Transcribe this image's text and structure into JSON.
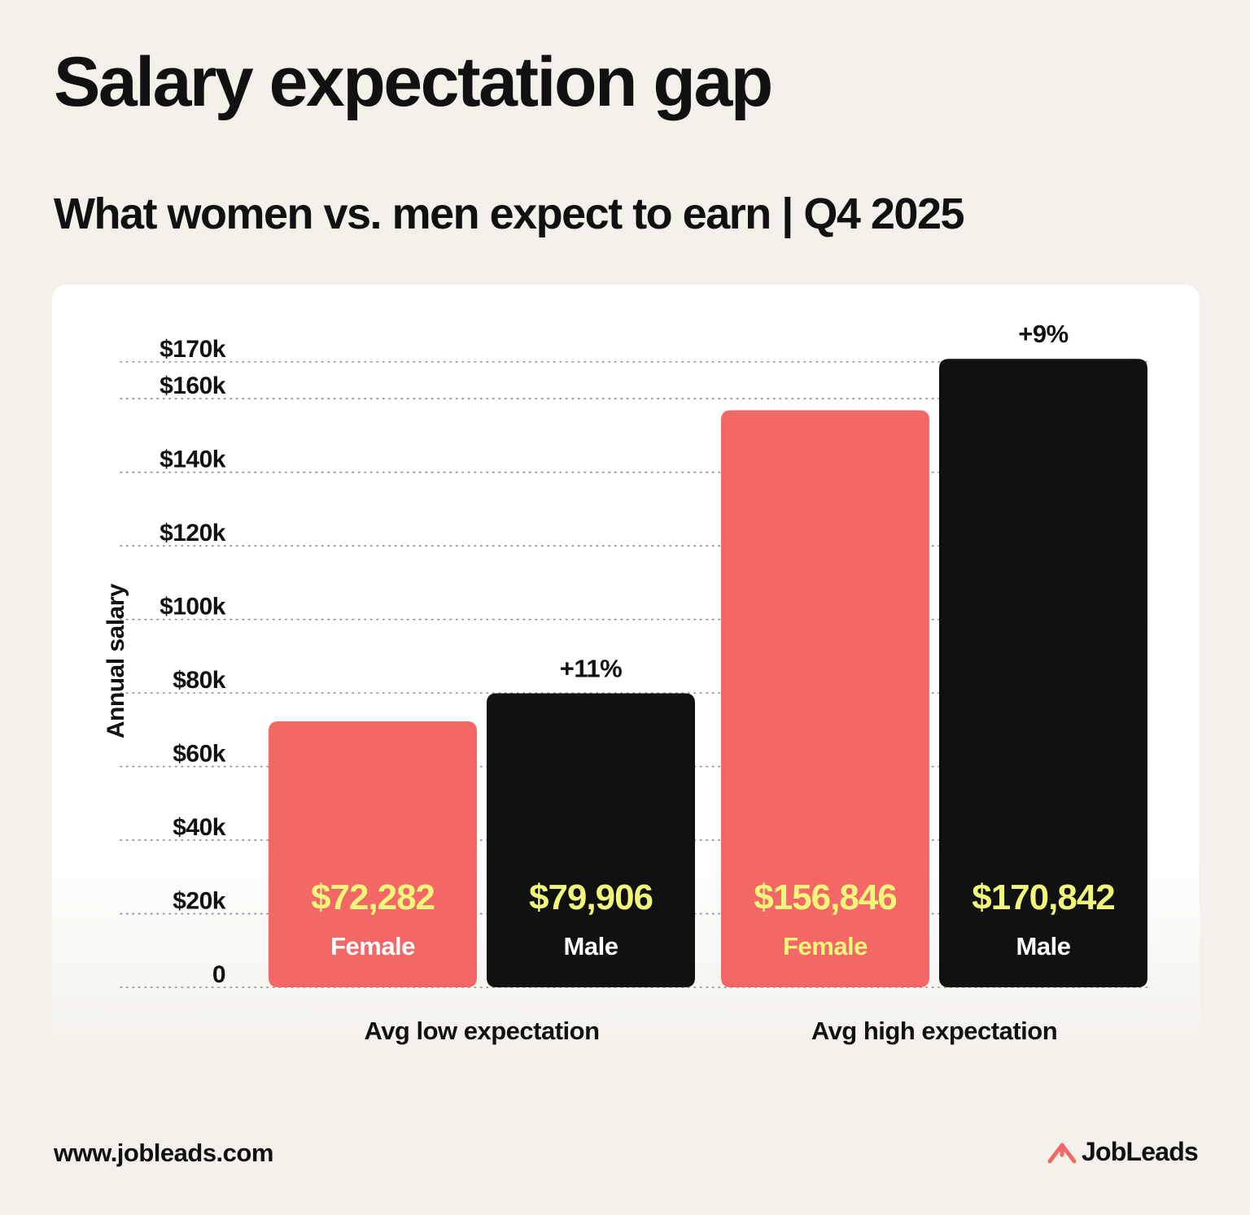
{
  "header": {
    "title": "Salary expectation gap",
    "subtitle": "What women vs. men expect to earn | Q4 2025"
  },
  "footer": {
    "url": "www.jobleads.com",
    "brand": "JobLeads"
  },
  "colors": {
    "female": "#f46767",
    "male": "#111111",
    "value_label": "#f1f77a",
    "accent": "#f46767"
  },
  "chart_data": {
    "type": "bar",
    "title": "",
    "ylabel": "Annual salary",
    "xlabel": "",
    "ylim": [
      0,
      170000
    ],
    "y_ticks": [
      {
        "value": 0,
        "label": "0"
      },
      {
        "value": 20000,
        "label": "$20k"
      },
      {
        "value": 40000,
        "label": "$40k"
      },
      {
        "value": 60000,
        "label": "$60k"
      },
      {
        "value": 80000,
        "label": "$80k"
      },
      {
        "value": 100000,
        "label": "$100k"
      },
      {
        "value": 120000,
        "label": "$120k"
      },
      {
        "value": 140000,
        "label": "$140k"
      },
      {
        "value": 160000,
        "label": "$160k"
      },
      {
        "value": 170000,
        "label": "$170k"
      }
    ],
    "grid": true,
    "legend": "none",
    "categories": [
      "Avg low expectation",
      "Avg high expectation"
    ],
    "series": [
      {
        "name": "Female",
        "values": [
          72282,
          156846
        ],
        "value_labels": [
          "$72,282",
          "$156,846"
        ],
        "bar_labels": [
          "Female",
          "Female"
        ]
      },
      {
        "name": "Male",
        "values": [
          79906,
          170842
        ],
        "value_labels": [
          "$79,906",
          "$170,842"
        ],
        "bar_labels": [
          "Male",
          "Male"
        ],
        "annotations": [
          "+11%",
          "+9%"
        ]
      }
    ]
  }
}
